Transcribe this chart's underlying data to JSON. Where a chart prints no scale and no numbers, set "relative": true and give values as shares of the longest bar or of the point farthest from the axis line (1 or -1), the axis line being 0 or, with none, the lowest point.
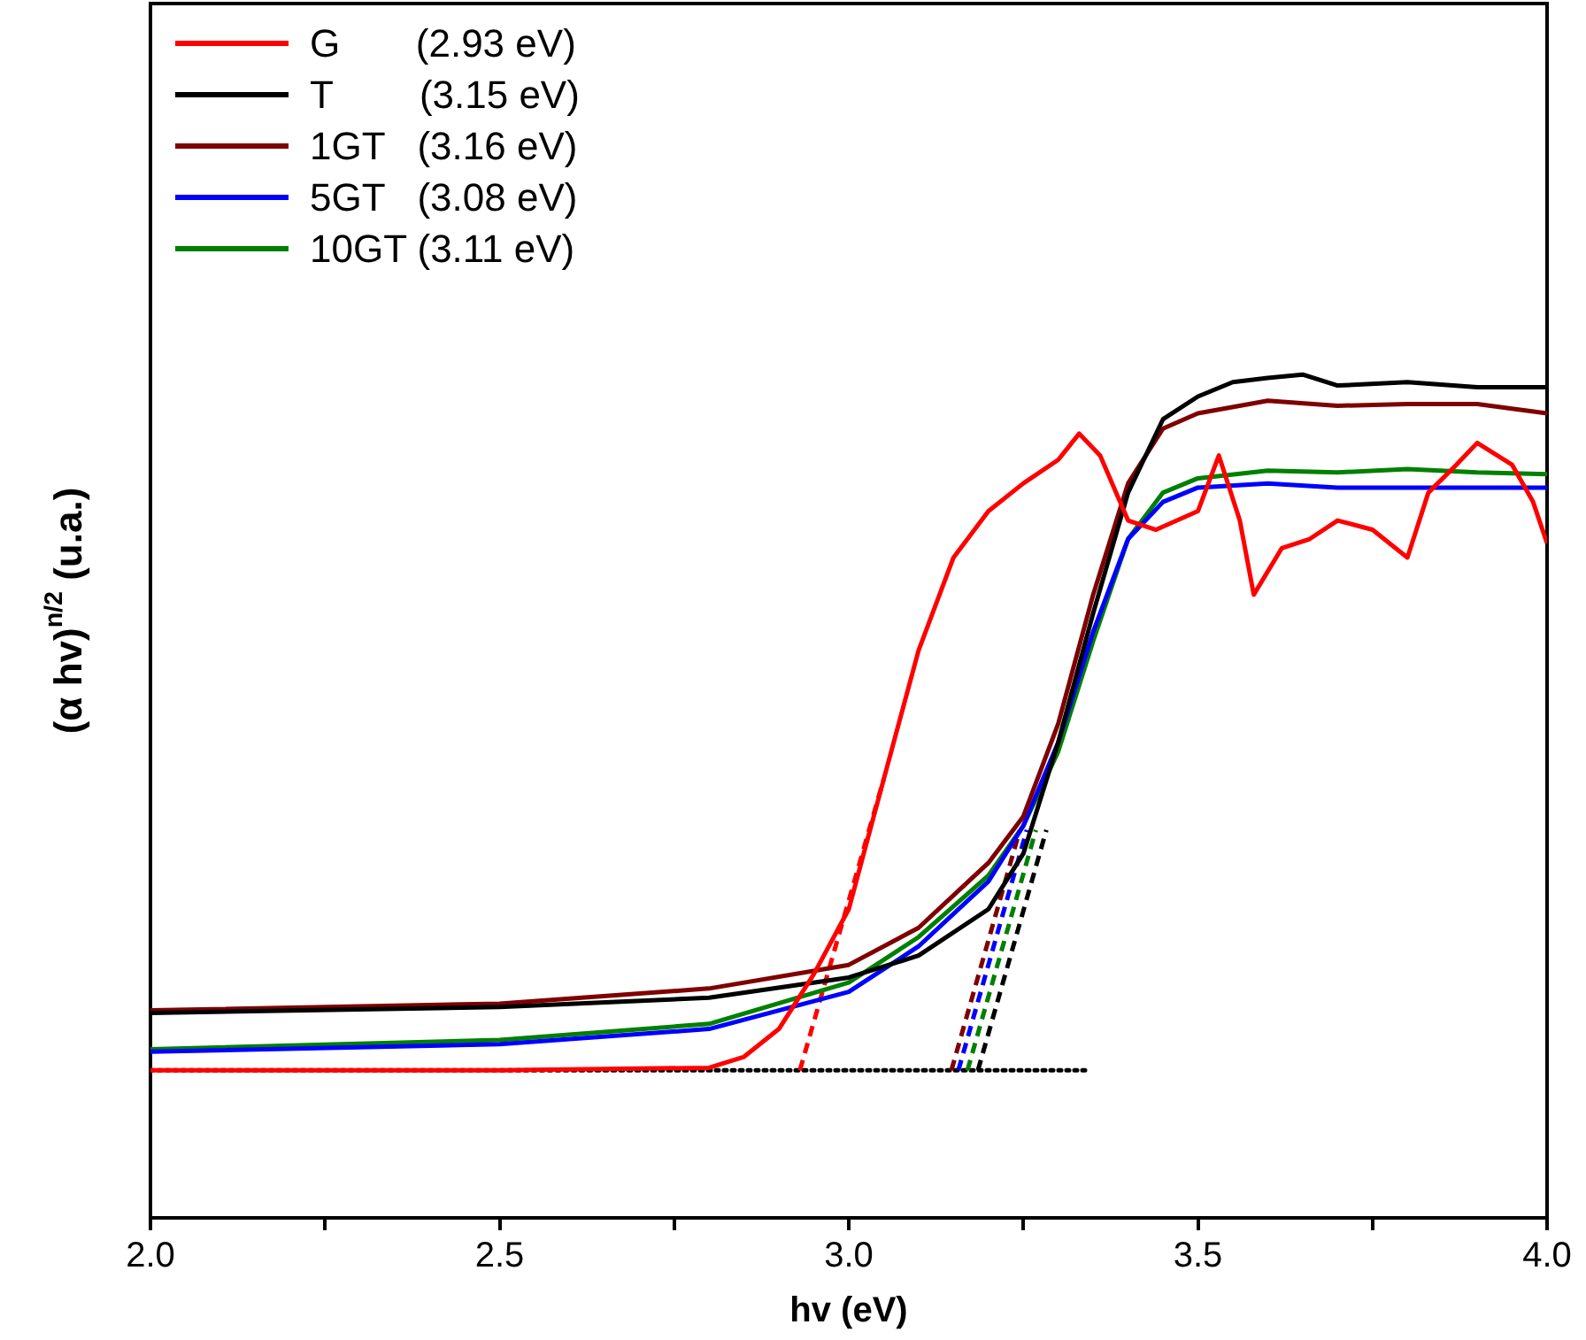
{
  "chart_data": {
    "type": "line",
    "relative": true,
    "xlabel": "hv (eV)",
    "ylabel": "(α hv)$^{n/2}$ (u.a.)",
    "xlim": [
      2.0,
      4.0
    ],
    "xticks": [
      {
        "value": 2.0,
        "label": "2.0"
      },
      {
        "value": 2.25,
        "label": null
      },
      {
        "value": 2.5,
        "label": "2.5"
      },
      {
        "value": 2.75,
        "label": null
      },
      {
        "value": 3.0,
        "label": "3.0"
      },
      {
        "value": 3.25,
        "label": null
      },
      {
        "value": 3.5,
        "label": "3.5"
      },
      {
        "value": 3.75,
        "label": null
      },
      {
        "value": 4.0,
        "label": "4.0"
      }
    ],
    "tick_labels": "x",
    "legend": "top left",
    "grid": false,
    "marker": "none",
    "line_style": "solid",
    "series": [
      {
        "name": "G       (2.93 eV)",
        "color": "#ff0000",
        "x": [
          2.0,
          2.5,
          2.8,
          2.85,
          2.9,
          2.95,
          3.0,
          3.05,
          3.1,
          3.15,
          3.2,
          3.25,
          3.3,
          3.33,
          3.36,
          3.4,
          3.44,
          3.5,
          3.53,
          3.56,
          3.58,
          3.62,
          3.66,
          3.7,
          3.75,
          3.8,
          3.83,
          3.87,
          3.9,
          3.95,
          3.98,
          4.0
        ],
        "values": [
          0.175,
          0.175,
          0.178,
          0.191,
          0.224,
          0.289,
          0.366,
          0.52,
          0.673,
          0.783,
          0.838,
          0.871,
          0.899,
          0.93,
          0.904,
          0.827,
          0.816,
          0.838,
          0.904,
          0.827,
          0.739,
          0.794,
          0.805,
          0.827,
          0.816,
          0.783,
          0.86,
          0.893,
          0.919,
          0.893,
          0.849,
          0.8
        ]
      },
      {
        "name": "T        (3.15 eV)",
        "color": "#000000",
        "x": [
          2.0,
          2.5,
          2.8,
          3.0,
          3.1,
          3.2,
          3.25,
          3.3,
          3.35,
          3.4,
          3.45,
          3.5,
          3.55,
          3.6,
          3.65,
          3.7,
          3.8,
          3.9,
          4.0
        ],
        "values": [
          0.243,
          0.25,
          0.261,
          0.285,
          0.311,
          0.366,
          0.432,
          0.564,
          0.717,
          0.86,
          0.947,
          0.974,
          0.991,
          0.996,
          1.0,
          0.987,
          0.991,
          0.985,
          0.985
        ]
      },
      {
        "name": "1GT   (3.16 eV)",
        "color": "#7f0000",
        "x": [
          2.0,
          2.5,
          2.8,
          3.0,
          3.1,
          3.2,
          3.25,
          3.3,
          3.35,
          3.4,
          3.45,
          3.5,
          3.6,
          3.7,
          3.8,
          3.9,
          4.0
        ],
        "values": [
          0.246,
          0.254,
          0.272,
          0.3,
          0.344,
          0.421,
          0.476,
          0.586,
          0.739,
          0.871,
          0.936,
          0.954,
          0.969,
          0.963,
          0.965,
          0.965,
          0.954
        ]
      },
      {
        "name": "5GT   (3.08 eV)",
        "color": "#0000ff",
        "x": [
          2.0,
          2.5,
          2.8,
          3.0,
          3.1,
          3.2,
          3.25,
          3.3,
          3.35,
          3.4,
          3.45,
          3.5,
          3.6,
          3.7,
          3.8,
          3.9,
          4.0
        ],
        "values": [
          0.197,
          0.206,
          0.224,
          0.268,
          0.322,
          0.399,
          0.465,
          0.564,
          0.695,
          0.805,
          0.849,
          0.866,
          0.871,
          0.866,
          0.866,
          0.866,
          0.866
        ]
      },
      {
        "name": "10GT (3.11 eV)",
        "color": "#008000",
        "x": [
          2.0,
          2.5,
          2.8,
          3.0,
          3.1,
          3.2,
          3.25,
          3.3,
          3.35,
          3.4,
          3.45,
          3.5,
          3.6,
          3.7,
          3.8,
          3.9,
          4.0
        ],
        "values": [
          0.2,
          0.211,
          0.23,
          0.279,
          0.333,
          0.406,
          0.465,
          0.553,
          0.684,
          0.805,
          0.86,
          0.877,
          0.886,
          0.884,
          0.888,
          0.884,
          0.882
        ]
      },
      {
        "line_style": "dashed",
        "color": "#ff0000",
        "x": [
          2.93,
          3.05
        ],
        "values": [
          0.175,
          0.52
        ]
      },
      {
        "line_style": "dashed",
        "color": "#7f0000",
        "x": [
          3.147,
          3.245
        ],
        "values": [
          0.175,
          0.46
        ]
      },
      {
        "line_style": "dashed",
        "color": "#0000ff",
        "x": [
          3.157,
          3.255
        ],
        "values": [
          0.175,
          0.46
        ]
      },
      {
        "line_style": "dashed",
        "color": "#008000",
        "x": [
          3.17,
          3.268
        ],
        "values": [
          0.175,
          0.46
        ]
      },
      {
        "line_style": "dashed",
        "color": "#000000",
        "x": [
          3.185,
          3.283
        ],
        "values": [
          0.175,
          0.46
        ]
      },
      {
        "line_style": "dotted",
        "color": "#000000",
        "x": [
          2.0,
          3.34
        ],
        "values": [
          0.175,
          0.175
        ]
      }
    ]
  }
}
